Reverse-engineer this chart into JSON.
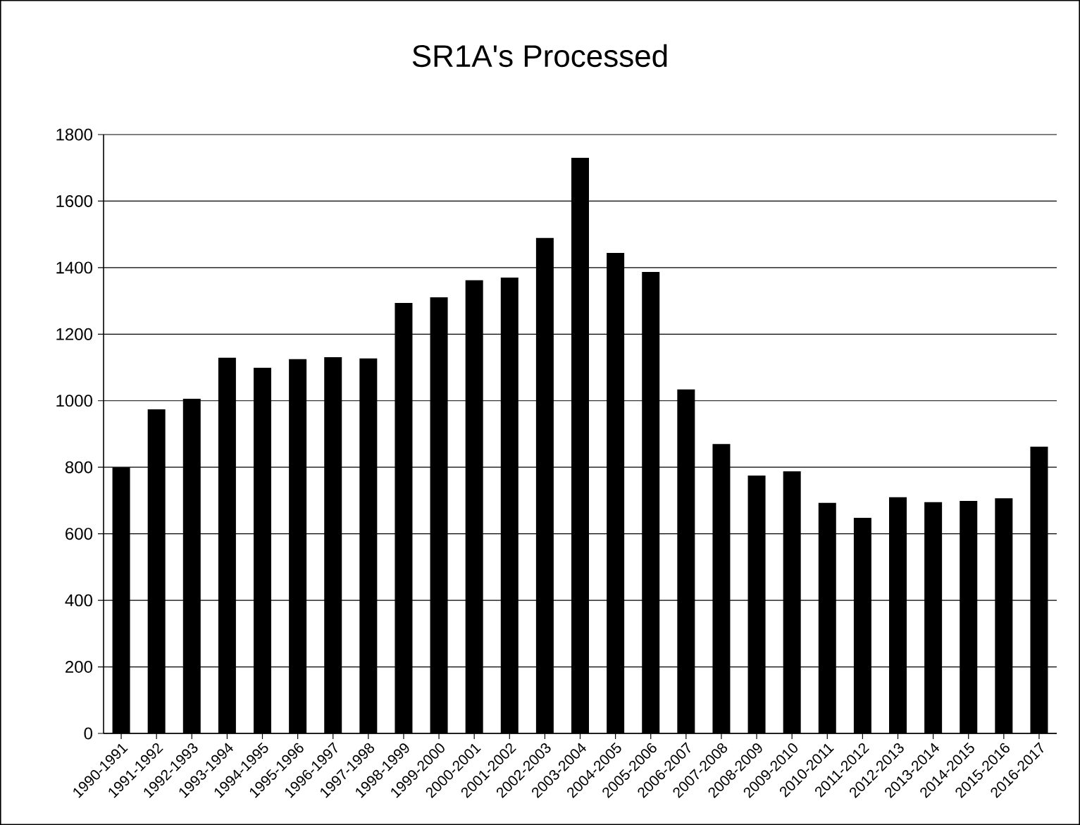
{
  "chart_data": {
    "type": "bar",
    "title": "SR1A's Processed",
    "categories": [
      "1990-1991",
      "1991-1992",
      "1992-1993",
      "1993-1994",
      "1994-1995",
      "1995-1996",
      "1996-1997",
      "1997-1998",
      "1998-1999",
      "1999-2000",
      "2000-2001",
      "2001-2002",
      "2002-2003",
      "2003-2004",
      "2004-2005",
      "2005-2006",
      "2006-2007",
      "2007-2008",
      "2008-2009",
      "2009-2010",
      "2010-2011",
      "2011-2012",
      "2012-2013",
      "2013-2014",
      "2014-2015",
      "2015-2016",
      "2016-2017"
    ],
    "values": [
      800,
      974,
      1006,
      1129,
      1099,
      1125,
      1131,
      1127,
      1294,
      1311,
      1362,
      1370,
      1489,
      1730,
      1444,
      1387,
      1034,
      870,
      775,
      788,
      693,
      648,
      710,
      695,
      699,
      707,
      862
    ],
    "color": "#000000",
    "ylim": [
      0,
      1800
    ],
    "yticks": [
      0,
      200,
      400,
      600,
      800,
      1000,
      1200,
      1400,
      1600,
      1800
    ],
    "grid": "y"
  }
}
